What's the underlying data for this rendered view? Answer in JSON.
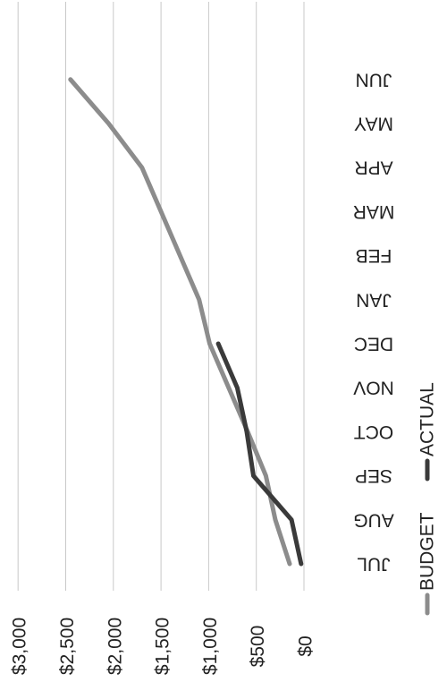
{
  "chart_data": {
    "type": "line",
    "title": "",
    "xlabel": "",
    "ylabel": "",
    "categories": [
      "JUL",
      "AUG",
      "SEP",
      "OCT",
      "NOV",
      "DEC",
      "JAN",
      "FEB",
      "MAR",
      "APR",
      "MAY",
      "JUN"
    ],
    "y_ticks": [
      "$0",
      "$500",
      "$1,000",
      "$1,500",
      "$2,000",
      "$2,500",
      "$3,000"
    ],
    "ylim": [
      0,
      3000
    ],
    "grid": true,
    "legend_position": "bottom",
    "rotation": "chart rotated 90 degrees clockwise (read by turning the page)",
    "series": [
      {
        "name": "BUDGET",
        "color": "#8c8c8c",
        "values": [
          150,
          300,
          400,
          590,
          790,
          990,
          1100,
          1300,
          1500,
          1700,
          2050,
          2450
        ]
      },
      {
        "name": "ACTUAL",
        "color": "#3a3a3a",
        "values": [
          30,
          130,
          530,
          600,
          700,
          900,
          null,
          null,
          null,
          null,
          null,
          null
        ]
      }
    ]
  }
}
